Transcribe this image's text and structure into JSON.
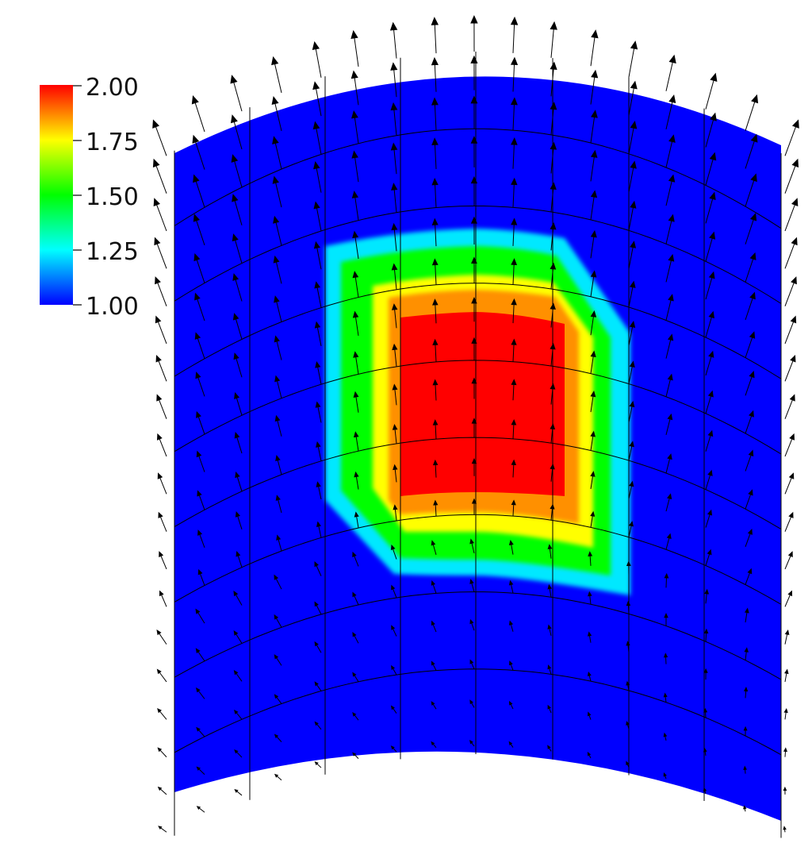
{
  "colorbar": {
    "labels": [
      "2.00",
      "1.75",
      "1.50",
      "1.25",
      "1.00"
    ],
    "range": [
      1.0,
      2.0
    ],
    "colormap": [
      "#0000ff",
      "#00ffff",
      "#00ff00",
      "#ffff00",
      "#ff0000"
    ]
  },
  "field": {
    "background_color": "#0000ff",
    "grid_color": "#000000",
    "arrow_color": "#000000"
  }
}
